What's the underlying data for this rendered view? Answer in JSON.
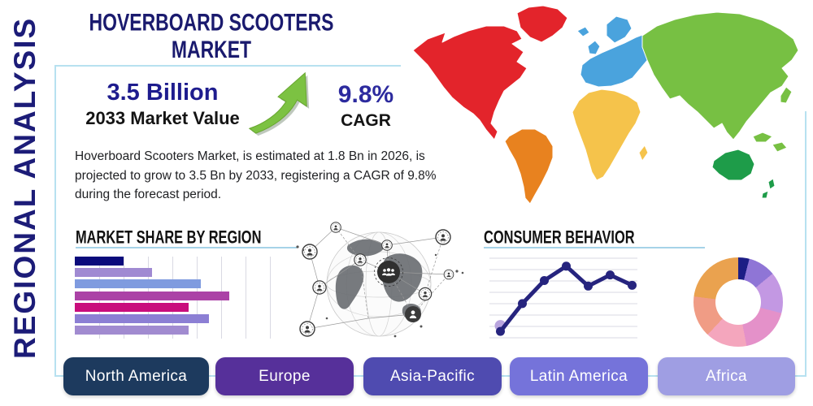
{
  "page": {
    "title": "HOVERBOARD SCOOTERS MARKET",
    "side_label": "REGIONAL ANALYSIS"
  },
  "stats": {
    "market_value": "3.5 Billion",
    "market_value_label": "2033 Market Value",
    "cagr_value": "9.8%",
    "cagr_label": "CAGR"
  },
  "description_lines": [
    "Hoverboard Scooters Market, is estimated at 1.8 Bn in 2026, is",
    "projected to grow to 3.5 Bn by 2033, registering a CAGR of 9.8%",
    "during the forecast period."
  ],
  "sections": {
    "market_share_heading": "MARKET SHARE BY REGION",
    "consumer_behavior_heading": "CONSUMER BEHAVIOR"
  },
  "region_buttons": [
    {
      "label": "North America",
      "color": "#1d3a5e"
    },
    {
      "label": "Europe",
      "color": "#56309a"
    },
    {
      "label": "Asia-Pacific",
      "color": "#4f4bb0"
    },
    {
      "label": "Latin America",
      "color": "#7573da"
    },
    {
      "label": "Africa",
      "color": "#9f9ee3"
    }
  ],
  "map_region_colors": {
    "north_america": "#e3242b",
    "south_america": "#e8821f",
    "europe": "#4aa3dd",
    "africa": "#f5c34b",
    "asia": "#77c043",
    "australia": "#1e9c49"
  },
  "accent_colors": {
    "panel_border": "#b7e1f0",
    "underline": "#a6d3e8",
    "title_navy": "#1a1a6e",
    "stat_navy": "#1e1c8e",
    "arrow_green": "#7cc242"
  },
  "chart_data": [
    {
      "type": "bar",
      "title": "MARKET SHARE BY REGION",
      "orientation": "horizontal",
      "categories": [
        "",
        "",
        "",
        "",
        "",
        "",
        ""
      ],
      "values": [
        24,
        38,
        62,
        76,
        56,
        66,
        56
      ],
      "value_unit": "relative-percent-of-axis",
      "bar_colors": [
        "#0b0b7b",
        "#a08ad2",
        "#7f9bdf",
        "#ab42a6",
        "#c90d7c",
        "#8c7fd4",
        "#a18bd0"
      ],
      "xlim": [
        0,
        100
      ],
      "grid": "vertical",
      "axis_labels_visible": false
    },
    {
      "type": "line",
      "title": "CONSUMER BEHAVIOR",
      "x": [
        1,
        2,
        3,
        4,
        5,
        6,
        7
      ],
      "values": [
        8,
        43,
        72,
        90,
        65,
        79,
        66
      ],
      "ylim": [
        0,
        100
      ],
      "line_color": "#26247e",
      "marker": "circle",
      "first_point_halo_color": "#b9a5de",
      "grid": "horizontal",
      "axis_labels_visible": false
    },
    {
      "type": "pie",
      "subtype": "donut",
      "start_angle_deg": 0,
      "values": [
        4,
        10,
        15,
        18,
        15,
        15,
        23
      ],
      "slice_colors": [
        "#1c1d85",
        "#8f75d6",
        "#c398e3",
        "#e491c9",
        "#f4a6bd",
        "#f09c85",
        "#eaa24f"
      ],
      "labels_visible": false
    }
  ]
}
